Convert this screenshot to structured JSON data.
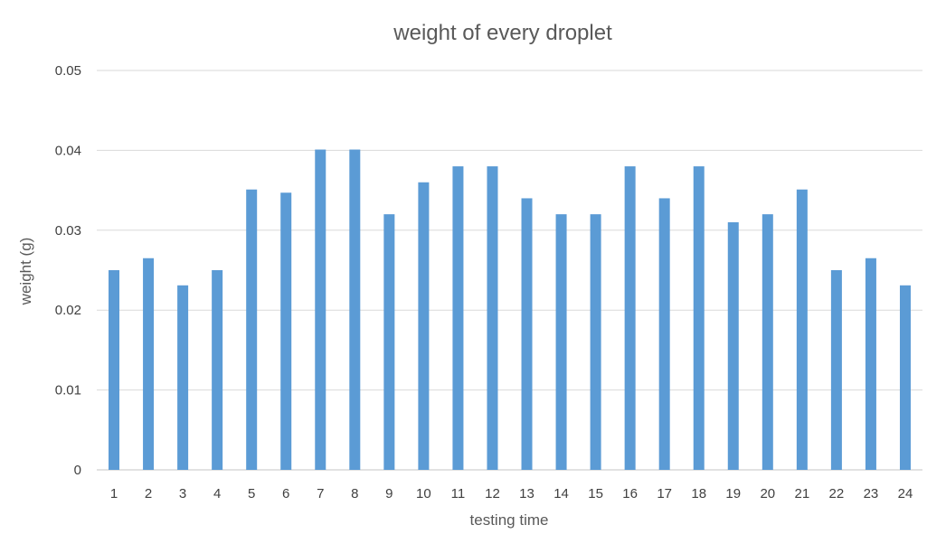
{
  "chart_data": {
    "type": "bar",
    "title": "weight of every droplet",
    "xlabel": "testing time",
    "ylabel": "weight (g)",
    "categories": [
      "1",
      "2",
      "3",
      "4",
      "5",
      "6",
      "7",
      "8",
      "9",
      "10",
      "11",
      "12",
      "13",
      "14",
      "15",
      "16",
      "17",
      "18",
      "19",
      "20",
      "21",
      "22",
      "23",
      "24"
    ],
    "values": [
      0.025,
      0.0265,
      0.0231,
      0.025,
      0.0351,
      0.0347,
      0.0401,
      0.0401,
      0.032,
      0.036,
      0.038,
      0.038,
      0.034,
      0.032,
      0.032,
      0.038,
      0.034,
      0.038,
      0.031,
      0.032,
      0.0351,
      0.025,
      0.0265,
      0.0231
    ],
    "ylim": [
      0,
      0.05
    ],
    "yticks": [
      "0",
      "0.01",
      "0.02",
      "0.03",
      "0.04",
      "0.05"
    ],
    "grid": true,
    "legend": "none",
    "colors": {
      "bar": "#5b9bd5"
    }
  }
}
